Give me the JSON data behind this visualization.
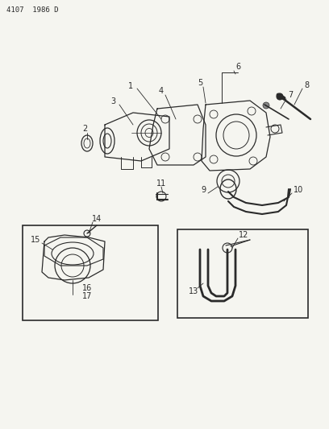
{
  "bg_color": "#f5f5f0",
  "line_color": "#2a2a2a",
  "fig_width": 4.08,
  "fig_height": 5.33,
  "dpi": 100,
  "header": "4107  1986 D",
  "header_fontsize": 6.5
}
